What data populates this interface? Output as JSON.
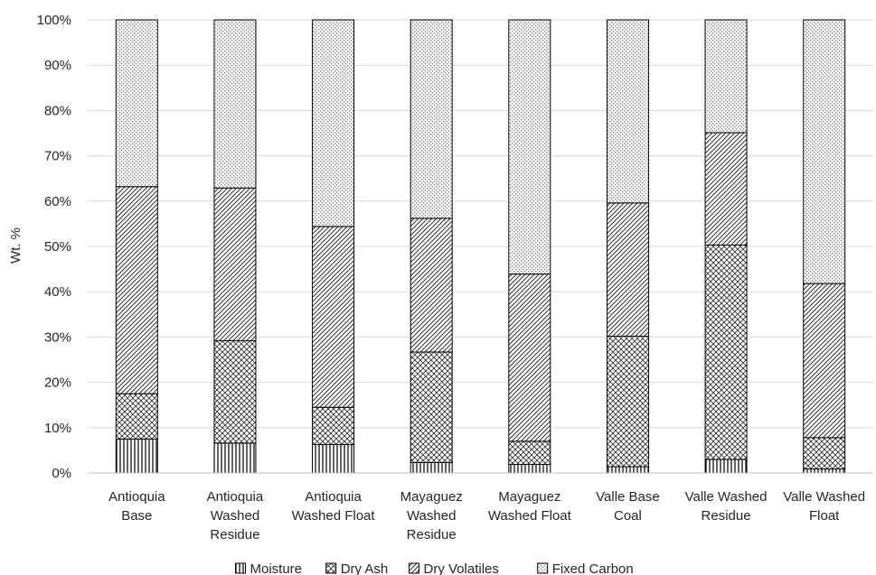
{
  "chart_data": {
    "type": "bar",
    "stacked": true,
    "percent": true,
    "title": "",
    "xlabel": "",
    "ylabel": "Wt. %",
    "ylim": [
      0,
      100
    ],
    "yticks": [
      "0%",
      "10%",
      "20%",
      "30%",
      "40%",
      "50%",
      "60%",
      "70%",
      "80%",
      "90%",
      "100%"
    ],
    "grid": true,
    "legend_position": "bottom",
    "categories": [
      [
        "Antioquia",
        "Base"
      ],
      [
        "Antioquia",
        "Washed",
        "Residue"
      ],
      [
        "Antioquia",
        "Washed Float"
      ],
      [
        "Mayaguez",
        "Washed",
        "Residue"
      ],
      [
        "Mayaguez",
        "Washed Float"
      ],
      [
        "Valle Base",
        "Coal"
      ],
      [
        "Valle Washed",
        "Residue"
      ],
      [
        "Valle Washed",
        "Float"
      ]
    ],
    "series": [
      {
        "name": "Moisture",
        "pattern": "vertical-lines",
        "values": [
          7.5,
          6.6,
          6.3,
          2.3,
          1.9,
          1.4,
          3.0,
          0.9
        ]
      },
      {
        "name": "Dry Ash",
        "pattern": "cross-hatch",
        "values": [
          10.0,
          22.6,
          8.2,
          24.4,
          5.1,
          28.8,
          47.3,
          6.9
        ]
      },
      {
        "name": "Dry Volatiles",
        "pattern": "diagonal-lines",
        "values": [
          45.7,
          33.7,
          39.9,
          29.5,
          36.9,
          29.4,
          24.8,
          34.0
        ]
      },
      {
        "name": "Fixed Carbon",
        "pattern": "dots",
        "values": [
          36.8,
          37.1,
          45.6,
          43.8,
          56.1,
          40.4,
          24.9,
          58.2
        ]
      }
    ]
  }
}
